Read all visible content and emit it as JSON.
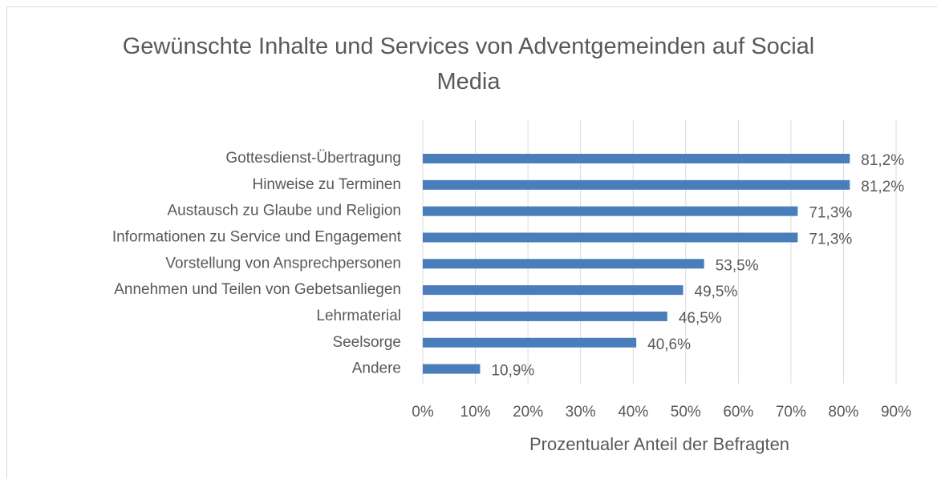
{
  "chart_data": {
    "type": "bar",
    "orientation": "horizontal",
    "title": "Gewünschte Inhalte und Services von Adventgemeinden auf Social Media",
    "x_label": "Prozentualer Anteil der Befragten",
    "categories": [
      "Gottesdienst-Übertragung",
      "Hinweise zu Terminen",
      "Austausch zu Glaube und Religion",
      "Informationen zu Service und Engagement",
      "Vorstellung von Ansprechpersonen",
      "Annehmen und Teilen von Gebetsanliegen",
      "Lehrmaterial",
      "Seelsorge",
      "Andere"
    ],
    "values": [
      81.2,
      81.2,
      71.3,
      71.3,
      53.5,
      49.5,
      46.5,
      40.6,
      10.9
    ],
    "value_labels": [
      "81,2%",
      "81,2%",
      "71,3%",
      "71,3%",
      "53,5%",
      "49,5%",
      "46,5%",
      "40,6%",
      "10,9%"
    ],
    "color": "#4a7ebb",
    "xlim": [
      0,
      90
    ],
    "xticks": [
      {
        "value": 0,
        "label": "0%"
      },
      {
        "value": 10,
        "label": "10%"
      },
      {
        "value": 20,
        "label": "20%"
      },
      {
        "value": 30,
        "label": "30%"
      },
      {
        "value": 40,
        "label": "40%"
      },
      {
        "value": 50,
        "label": "50%"
      },
      {
        "value": 60,
        "label": "60%"
      },
      {
        "value": 70,
        "label": "70%"
      },
      {
        "value": 80,
        "label": "80%"
      },
      {
        "value": 90,
        "label": "90%"
      }
    ],
    "grid": true
  }
}
